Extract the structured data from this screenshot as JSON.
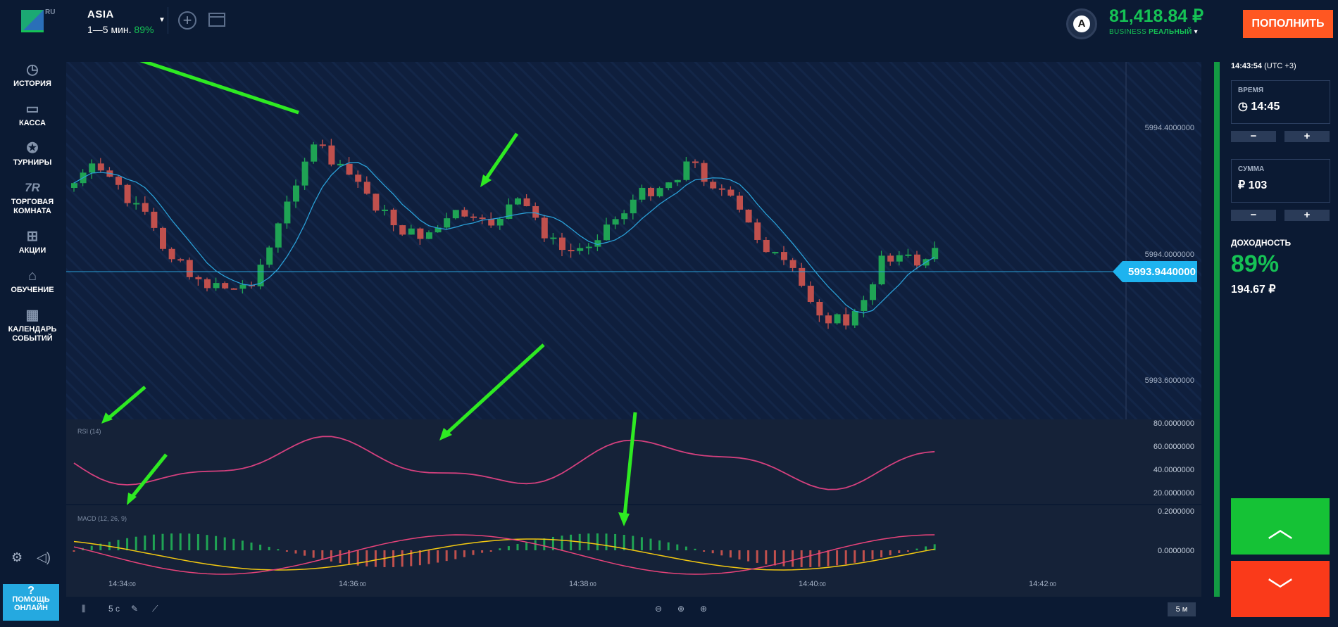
{
  "header": {
    "lang": "RU",
    "asset_name": "ASIA",
    "asset_expiry": "1—5 мин.",
    "asset_payout": "89%",
    "avatar_letter": "A",
    "balance": "81,418.84 ₽",
    "account_type_prefix": "BUSINESS",
    "account_type": "РЕАЛЬНЫЙ",
    "deposit_label": "ПОПОЛНИТЬ"
  },
  "sidebar": {
    "items": [
      {
        "label": "ИСТОРИЯ",
        "icon": "history-icon"
      },
      {
        "label": "КАССА",
        "icon": "wallet-icon"
      },
      {
        "label": "ТУРНИРЫ",
        "icon": "star-icon"
      },
      {
        "label": "ТОРГОВАЯ КОМНАТА",
        "icon": "trading-room-icon"
      },
      {
        "label": "АКЦИИ",
        "icon": "gift-icon"
      },
      {
        "label": "ОБУЧЕНИЕ",
        "icon": "graduation-cap-icon"
      },
      {
        "label": "КАЛЕНДАРЬ СОБЫТИЙ",
        "icon": "calendar-icon"
      }
    ],
    "help_label": "ПОМОЩЬ ОНЛАЙН"
  },
  "chart": {
    "price_labels": [
      "5994.4000000",
      "5994.0000000",
      "5993.6000000"
    ],
    "current_price": "5993.9440000",
    "rsi_label": "RSI (14)",
    "rsi_levels": [
      "80.0000000",
      "60.0000000",
      "40.0000000",
      "20.0000000"
    ],
    "macd_label": "MACD (12, 26, 9)",
    "macd_levels": [
      "0.2000000",
      "0.0000000"
    ],
    "time_labels": [
      {
        "main": "14:34",
        "sec": ":00"
      },
      {
        "main": "14:36",
        "sec": ":00"
      },
      {
        "main": "14:38",
        "sec": ":00"
      },
      {
        "main": "14:40",
        "sec": ":00"
      },
      {
        "main": "14:42",
        "sec": ":00"
      }
    ],
    "colors": {
      "up": "#1fa354",
      "down": "#c0504d",
      "ma": "#2a9fd6",
      "rsi": "#d4407e",
      "macd_signal": "#f2c811",
      "macd_line": "#e8437a"
    }
  },
  "toolbar": {
    "interval": "5 с",
    "timeframe": "5 м"
  },
  "right_panel": {
    "clock": "14:43:54",
    "tz": "(UTC +3)",
    "time_label": "ВРЕМЯ",
    "time_value": "14:45",
    "amount_label": "СУММА",
    "amount_value": "₽ 103",
    "minus": "−",
    "plus": "+",
    "yield_label": "ДОХОДНОСТЬ",
    "yield_pct": "89%",
    "yield_amount": "194.67 ₽"
  }
}
